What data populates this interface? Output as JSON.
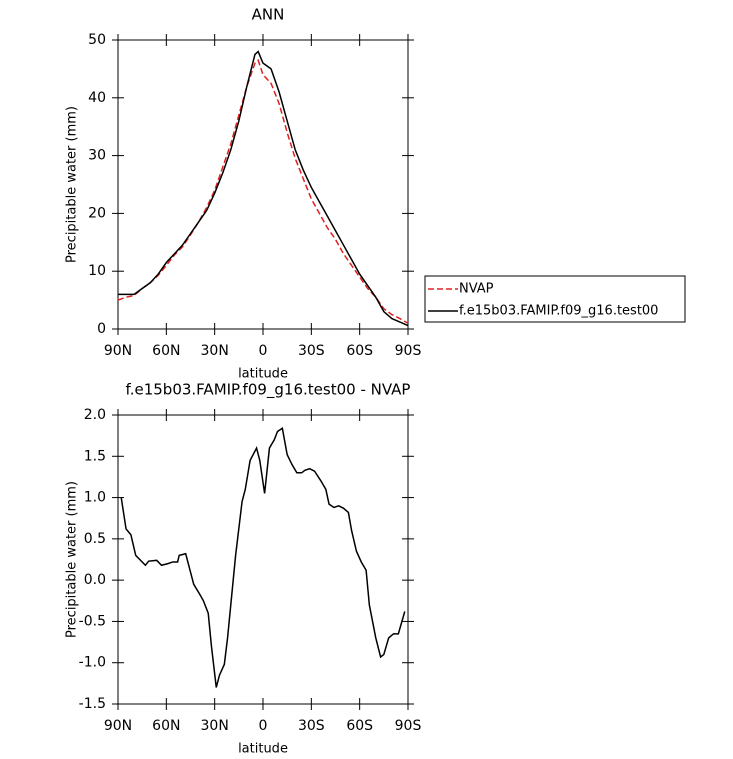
{
  "chart_data": [
    {
      "type": "line",
      "title": "ANN",
      "xlabel": "latitude",
      "ylabel": "Precipitable water (mm)",
      "x": [
        90,
        85,
        80,
        75,
        70,
        65,
        60,
        55,
        50,
        45,
        40,
        35,
        30,
        25,
        20,
        15,
        10,
        5,
        3,
        0,
        -5,
        -10,
        -15,
        -20,
        -25,
        -30,
        -35,
        -40,
        -45,
        -50,
        -55,
        -60,
        -65,
        -70,
        -75,
        -80,
        -85,
        -90
      ],
      "series": [
        {
          "name": "NVAP",
          "color": "#e02020",
          "linestyle": "dashed",
          "values": [
            5,
            5.5,
            5.8,
            7,
            8,
            9.3,
            11,
            12.8,
            14.2,
            16.3,
            18.5,
            21,
            24,
            28,
            32,
            37,
            42,
            46,
            46.5,
            44,
            42.5,
            39,
            34,
            29.5,
            26,
            22.5,
            20,
            17.5,
            15.5,
            13,
            11,
            9,
            7,
            5.5,
            3.5,
            2.5,
            1.8,
            1
          ]
        },
        {
          "name": "f.e15b03.FAMIP.f09_g16.test00",
          "color": "#000000",
          "linestyle": "solid",
          "values": [
            6,
            6,
            6,
            7,
            8,
            9.5,
            11.5,
            13,
            14.5,
            16.5,
            18.5,
            20.5,
            23.5,
            27,
            31,
            36,
            42,
            47.5,
            48,
            46,
            45,
            41,
            36,
            31,
            27.5,
            24.5,
            22,
            19.5,
            17,
            14.5,
            12,
            9.5,
            7.5,
            5.5,
            3,
            1.8,
            1.2,
            0.6
          ]
        }
      ],
      "xlim": [
        90,
        -90
      ],
      "xticks": [
        {
          "value": 90,
          "label": "90N"
        },
        {
          "value": 60,
          "label": "60N"
        },
        {
          "value": 30,
          "label": "30N"
        },
        0,
        {
          "value": -30,
          "label": "30S"
        },
        {
          "value": -60,
          "label": "60S"
        },
        {
          "value": -90,
          "label": "90S"
        }
      ],
      "ylim": [
        0,
        50
      ],
      "yticks": [
        0,
        10,
        20,
        30,
        40,
        50
      ],
      "legend": "right"
    },
    {
      "type": "line",
      "title": "f.e15b03.FAMIP.f09_g16.test00 - NVAP",
      "xlabel": "latitude",
      "ylabel": "Precipitable water (mm)",
      "x": [
        88,
        85,
        82,
        79,
        73,
        71,
        66,
        63,
        59,
        56,
        53,
        52,
        48,
        43,
        39,
        37,
        34,
        32,
        29,
        27,
        24,
        22,
        17,
        13,
        11,
        8,
        4,
        2,
        -1,
        -4,
        -7,
        -9,
        -12,
        -15,
        -18,
        -21,
        -24,
        -26,
        -29,
        -32,
        -36,
        -39,
        -41,
        -44,
        -47,
        -50,
        -53,
        -55,
        -58,
        -61,
        -64,
        -66,
        -70,
        -73,
        -75,
        -78,
        -81,
        -84,
        -88
      ],
      "color": "#000000",
      "values": [
        1.0,
        0.62,
        0.55,
        0.3,
        0.18,
        0.23,
        0.24,
        0.18,
        0.2,
        0.22,
        0.22,
        0.3,
        0.32,
        -0.05,
        -0.18,
        -0.25,
        -0.4,
        -0.8,
        -1.3,
        -1.15,
        -1.02,
        -0.7,
        0.3,
        0.95,
        1.1,
        1.45,
        1.6,
        1.45,
        1.05,
        1.6,
        1.7,
        1.8,
        1.84,
        1.52,
        1.4,
        1.3,
        1.3,
        1.33,
        1.35,
        1.32,
        1.2,
        1.1,
        0.92,
        0.88,
        0.9,
        0.87,
        0.82,
        0.6,
        0.35,
        0.22,
        0.12,
        -0.3,
        -0.7,
        -0.93,
        -0.9,
        -0.7,
        -0.65,
        -0.65,
        -0.38
      ],
      "xlim": [
        90,
        -90
      ],
      "xticks": [
        {
          "value": 90,
          "label": "90N"
        },
        {
          "value": 60,
          "label": "60N"
        },
        {
          "value": 30,
          "label": "30N"
        },
        0,
        {
          "value": -30,
          "label": "30S"
        },
        {
          "value": -60,
          "label": "60S"
        },
        {
          "value": -90,
          "label": "90S"
        }
      ],
      "ylim": [
        -1.5,
        2.0
      ],
      "yticks": [
        -1.5,
        {
          "value": -1,
          "label": "-1.0"
        },
        -0.5,
        {
          "value": 0,
          "label": "0.0"
        },
        0.5,
        {
          "value": 1,
          "label": "1.0"
        },
        1.5,
        {
          "value": 2,
          "label": "2.0"
        }
      ]
    }
  ]
}
